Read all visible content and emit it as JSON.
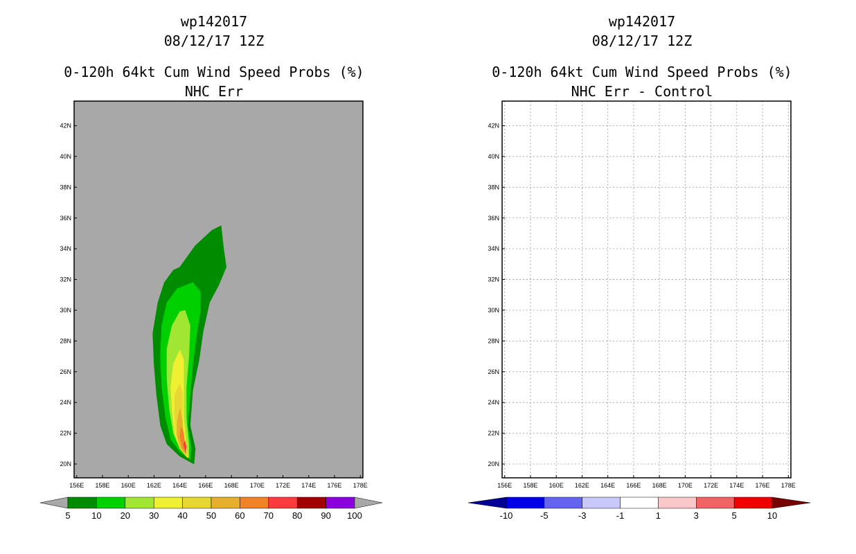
{
  "chart_data": [
    {
      "type": "heatmap",
      "title_lines": [
        "wp142017",
        "08/12/17 12Z",
        "0-120h 64kt Cum Wind Speed Probs (%)",
        "NHC Err"
      ],
      "xlabel": "",
      "ylabel": "",
      "x_ticks": [
        "156E",
        "158E",
        "160E",
        "162E",
        "164E",
        "166E",
        "168E",
        "170E",
        "172E",
        "174E",
        "176E",
        "178E"
      ],
      "y_ticks": [
        "20N",
        "22N",
        "24N",
        "26N",
        "28N",
        "30N",
        "32N",
        "34N",
        "36N",
        "38N",
        "40N",
        "42N"
      ],
      "xlim": [
        155.8,
        178.2
      ],
      "ylim": [
        19.1,
        43.6
      ],
      "background_color": "#a8a8a8",
      "colorbar": {
        "labels": [
          "5",
          "10",
          "20",
          "30",
          "40",
          "50",
          "60",
          "70",
          "80",
          "90",
          "100"
        ],
        "colors": [
          "#008c00",
          "#00d000",
          "#a0e632",
          "#f0f032",
          "#e6d732",
          "#e6af2d",
          "#f08228",
          "#fa3c3c",
          "#a00000",
          "#8c00dc"
        ],
        "under_color": "#a8a8a8",
        "over_color": "#a8a8a8"
      },
      "contours": [
        {
          "level": 5,
          "color": "#008c00",
          "points": [
            [
              165.1,
              20.0
            ],
            [
              164.0,
              20.5
            ],
            [
              163.0,
              21.3
            ],
            [
              162.5,
              22.5
            ],
            [
              162.2,
              24.5
            ],
            [
              162.0,
              26.5
            ],
            [
              161.9,
              28.5
            ],
            [
              162.3,
              30.5
            ],
            [
              162.8,
              31.8
            ],
            [
              163.5,
              32.6
            ],
            [
              164.0,
              32.8
            ],
            [
              165.2,
              34.2
            ],
            [
              166.5,
              35.2
            ],
            [
              167.2,
              35.5
            ],
            [
              167.4,
              34.0
            ],
            [
              167.6,
              32.8
            ],
            [
              167.0,
              31.6
            ],
            [
              166.3,
              30.5
            ],
            [
              165.8,
              28.6
            ],
            [
              165.5,
              26.8
            ],
            [
              165.0,
              24.8
            ],
            [
              164.8,
              22.5
            ],
            [
              165.2,
              21.0
            ]
          ]
        },
        {
          "level": 10,
          "color": "#00d000",
          "points": [
            [
              164.8,
              20.3
            ],
            [
              164.0,
              20.8
            ],
            [
              163.3,
              21.6
            ],
            [
              162.9,
              23.0
            ],
            [
              162.6,
              25.0
            ],
            [
              162.5,
              27.0
            ],
            [
              162.6,
              29.0
            ],
            [
              163.0,
              30.5
            ],
            [
              163.8,
              31.4
            ],
            [
              164.4,
              31.6
            ],
            [
              165.0,
              31.8
            ],
            [
              165.6,
              31.2
            ],
            [
              165.6,
              30.0
            ],
            [
              165.3,
              28.4
            ],
            [
              165.0,
              26.5
            ],
            [
              164.8,
              24.5
            ],
            [
              164.6,
              22.5
            ],
            [
              164.9,
              21.0
            ]
          ]
        },
        {
          "level": 20,
          "color": "#a0e632",
          "points": [
            [
              164.7,
              20.4
            ],
            [
              164.0,
              21.0
            ],
            [
              163.5,
              22.0
            ],
            [
              163.2,
              23.5
            ],
            [
              163.0,
              25.5
            ],
            [
              163.0,
              27.5
            ],
            [
              163.4,
              29.0
            ],
            [
              164.0,
              29.9
            ],
            [
              164.4,
              30.0
            ],
            [
              164.8,
              29.0
            ],
            [
              164.7,
              27.0
            ],
            [
              164.5,
              25.0
            ],
            [
              164.5,
              23.0
            ],
            [
              164.7,
              21.3
            ]
          ]
        },
        {
          "level": 30,
          "color": "#f0f032",
          "points": [
            [
              164.6,
              20.4
            ],
            [
              164.0,
              21.0
            ],
            [
              163.6,
              22.0
            ],
            [
              163.4,
              23.5
            ],
            [
              163.3,
              25.0
            ],
            [
              163.5,
              26.5
            ],
            [
              164.0,
              27.4
            ],
            [
              164.3,
              26.8
            ],
            [
              164.3,
              25.0
            ],
            [
              164.3,
              23.0
            ],
            [
              164.5,
              21.3
            ]
          ]
        },
        {
          "level": 40,
          "color": "#e6d732",
          "points": [
            [
              164.5,
              20.5
            ],
            [
              164.0,
              21.0
            ],
            [
              163.7,
              22.0
            ],
            [
              163.6,
              23.3
            ],
            [
              163.6,
              24.5
            ],
            [
              164.0,
              25.2
            ],
            [
              164.2,
              24.6
            ],
            [
              164.2,
              23.0
            ],
            [
              164.3,
              21.4
            ]
          ]
        },
        {
          "level": 50,
          "color": "#e6af2d",
          "points": [
            [
              164.5,
              20.6
            ],
            [
              164.1,
              21.0
            ],
            [
              163.8,
              21.8
            ],
            [
              163.8,
              22.8
            ],
            [
              164.0,
              23.6
            ],
            [
              164.2,
              22.8
            ],
            [
              164.3,
              21.5
            ]
          ]
        },
        {
          "level": 60,
          "color": "#f08228",
          "points": [
            [
              164.5,
              20.7
            ],
            [
              164.2,
              21.1
            ],
            [
              164.0,
              21.8
            ],
            [
              164.1,
              22.4
            ],
            [
              164.3,
              22.0
            ],
            [
              164.4,
              21.2
            ]
          ]
        },
        {
          "level": 70,
          "color": "#fa3c3c",
          "points": [
            [
              164.45,
              20.8
            ],
            [
              164.3,
              21.3
            ],
            [
              164.4,
              21.5
            ],
            [
              164.5,
              21.1
            ]
          ]
        }
      ]
    },
    {
      "type": "heatmap",
      "title_lines": [
        "wp142017",
        "08/12/17 12Z",
        "0-120h 64kt Cum Wind Speed Probs (%)",
        "NHC Err - Control"
      ],
      "xlabel": "",
      "ylabel": "",
      "x_ticks": [
        "156E",
        "158E",
        "160E",
        "162E",
        "164E",
        "166E",
        "168E",
        "170E",
        "172E",
        "174E",
        "176E",
        "178E"
      ],
      "y_ticks": [
        "20N",
        "22N",
        "24N",
        "26N",
        "28N",
        "30N",
        "32N",
        "34N",
        "36N",
        "38N",
        "40N",
        "42N"
      ],
      "xlim": [
        155.8,
        178.2
      ],
      "ylim": [
        19.1,
        43.6
      ],
      "background_color": "#ffffff",
      "gridlines": true,
      "colorbar": {
        "labels": [
          "-10",
          "-5",
          "-3",
          "-1",
          "1",
          "3",
          "5",
          "10"
        ],
        "colors": [
          "#0000e6",
          "#6464f0",
          "#c8c8fa",
          "#ffffff",
          "#fac8c8",
          "#f06464",
          "#f00000"
        ],
        "under_color": "#000096",
        "over_color": "#780000"
      },
      "contours": []
    }
  ]
}
